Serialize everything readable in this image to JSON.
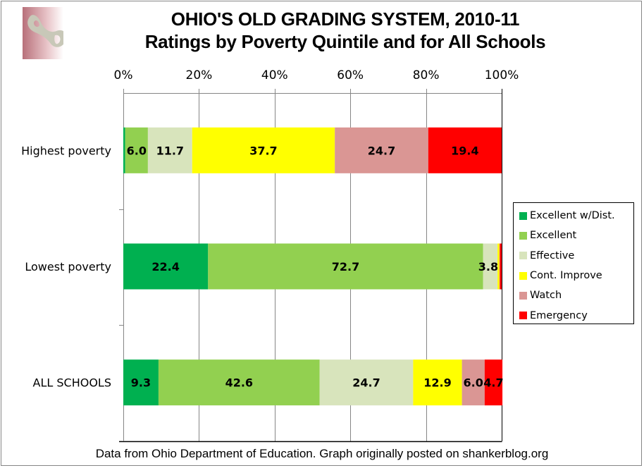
{
  "chart_data": {
    "type": "bar",
    "orientation": "horizontal",
    "stacked": true,
    "title": "OHIO'S OLD GRADING SYSTEM, 2010-11",
    "subtitle": "Ratings by Poverty Quintile and for All Schools",
    "xlabel": "",
    "ylabel": "",
    "xlim": [
      0,
      100
    ],
    "x_ticks": [
      "0%",
      "20%",
      "40%",
      "60%",
      "80%",
      "100%"
    ],
    "x_axis_position": "top",
    "grid": true,
    "legend_position": "right",
    "categories": [
      "Highest poverty",
      "Lowest poverty",
      "ALL SCHOOLS"
    ],
    "series": [
      {
        "name": "Excellent w/Dist.",
        "color": "#00b050",
        "values": [
          0.5,
          22.4,
          9.3
        ],
        "labels": [
          "",
          "22.4",
          "9.3"
        ]
      },
      {
        "name": "Excellent",
        "color": "#92d050",
        "values": [
          6.0,
          72.7,
          42.6
        ],
        "labels": [
          "6.0",
          "72.7",
          "42.6"
        ]
      },
      {
        "name": "Effective",
        "color": "#d8e4bc",
        "values": [
          11.7,
          3.8,
          24.7
        ],
        "labels": [
          "11.7",
          "3.8",
          "24.7"
        ]
      },
      {
        "name": "Cont. Improve",
        "color": "#ffff00",
        "values": [
          37.7,
          0.5,
          12.9
        ],
        "labels": [
          "37.7",
          "",
          "12.9"
        ]
      },
      {
        "name": "Watch",
        "color": "#da9694",
        "values": [
          24.7,
          0.1,
          6.0
        ],
        "labels": [
          "24.7",
          "",
          "6.0"
        ]
      },
      {
        "name": "Emergency",
        "color": "#ff0000",
        "values": [
          19.4,
          0.5,
          4.7
        ],
        "labels": [
          "19.4",
          "",
          "4.7"
        ]
      }
    ]
  },
  "footer": "Data from Ohio Department of Education. Graph originally posted on shankerblog.org"
}
